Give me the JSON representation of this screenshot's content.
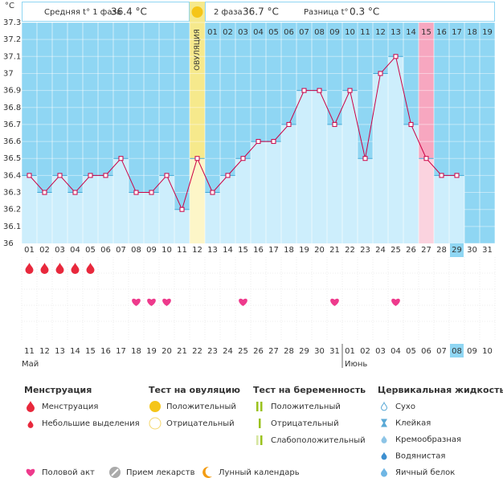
{
  "header": {
    "phase1_label": "Средняя t° 1 фаза",
    "phase1_value": "36.4 °C",
    "phase2_label": "2 фаза",
    "phase2_value": "36.7 °C",
    "diff_label": "Разница t°",
    "diff_value": "0.3 °C"
  },
  "chart_data": {
    "type": "line",
    "y_unit": "°C",
    "categories": [
      "01",
      "02",
      "03",
      "04",
      "05",
      "06",
      "07",
      "08",
      "09",
      "10",
      "11",
      "12",
      "13",
      "14",
      "15",
      "16",
      "17",
      "18",
      "19",
      "20",
      "21",
      "22",
      "23",
      "24",
      "25",
      "26",
      "27",
      "28",
      "29",
      "30",
      "31"
    ],
    "values": [
      36.4,
      36.3,
      36.4,
      36.3,
      36.4,
      36.4,
      36.5,
      36.3,
      36.3,
      36.4,
      36.2,
      36.5,
      36.3,
      36.4,
      36.5,
      36.6,
      36.6,
      36.7,
      36.9,
      36.9,
      36.7,
      36.9,
      36.5,
      37.0,
      37.1,
      36.7,
      36.5,
      36.4,
      36.4,
      null,
      null
    ],
    "ylim": [
      36,
      37.3
    ],
    "yticks": [
      36,
      36.1,
      36.2,
      36.3,
      36.4,
      36.5,
      36.6,
      36.7,
      36.8,
      36.9,
      37,
      37.1,
      37.2,
      37.3
    ],
    "color": "#cc0044",
    "bar_color": "#cdeefc",
    "background": "#8fd6f3",
    "ovulation_label": "ОВУЛЯЦИЯ",
    "ovulation_day": 12,
    "highlight_day": 27,
    "today_day": 29,
    "phase2_start": 13,
    "phase2_days": [
      "01",
      "02",
      "03",
      "04",
      "05",
      "06",
      "07",
      "08",
      "09",
      "10",
      "11",
      "12",
      "13",
      "14",
      "15",
      "16",
      "17",
      "18",
      "19"
    ],
    "menstruation_days": [
      1,
      2,
      3,
      4,
      5
    ],
    "intercourse_days": [
      8,
      9,
      10,
      15,
      21,
      25
    ],
    "dates": [
      "11",
      "12",
      "13",
      "14",
      "15",
      "16",
      "17",
      "18",
      "19",
      "20",
      "21",
      "22",
      "23",
      "24",
      "25",
      "26",
      "27",
      "28",
      "29",
      "30",
      "31",
      "01",
      "02",
      "03",
      "04",
      "05",
      "06",
      "07",
      "08",
      "09",
      "10"
    ],
    "weekend_dates": [
      5,
      6,
      12,
      13,
      19,
      20,
      26,
      27
    ],
    "months": [
      {
        "label": "Май",
        "day": 1
      },
      {
        "label": "Июнь",
        "day": 22
      }
    ]
  },
  "legend": {
    "sections": [
      {
        "title": "Менструация",
        "items": [
          "Менструация",
          "Небольшие выделения"
        ]
      },
      {
        "title": "Тест на овуляцию",
        "items": [
          "Положительный",
          "Отрицательный"
        ]
      },
      {
        "title": "Тест на беременность",
        "items": [
          "Положительный",
          "Отрицательный",
          "Слабоположительный"
        ]
      },
      {
        "title": "Цервикальная жидкость",
        "items": [
          "Сухо",
          "Клейкая",
          "Кремообразная",
          "Водянистая",
          "Яичный белок"
        ]
      }
    ],
    "extra": [
      "Половой акт",
      "Прием лекарств",
      "Лунный календарь"
    ]
  }
}
